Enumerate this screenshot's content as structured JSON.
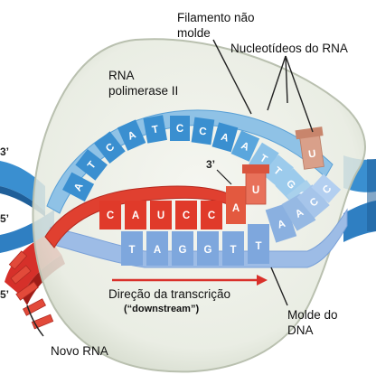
{
  "labels": {
    "non_template_strand": [
      "Filamento não",
      "molde"
    ],
    "rna_nucleotides": "Nucleotídeos do RNA",
    "rna_polymerase": [
      "RNA",
      "polimerase II"
    ],
    "transcription_direction": "Direção da transcrição",
    "downstream": "(“downstream”)",
    "template_strand": [
      "Molde do",
      "DNA"
    ],
    "new_rna": "Novo RNA"
  },
  "ends": {
    "five_prime": "5’",
    "three_prime": "3’"
  },
  "strands": {
    "non_template_bases": [
      "A",
      "T",
      "C",
      "A",
      "T",
      "C",
      "C",
      "A",
      "A",
      "T",
      "T",
      "G",
      "G"
    ],
    "rna_bases": [
      "C",
      "A",
      "U",
      "C",
      "C",
      "A"
    ],
    "incoming_rna_nucleotides": [
      "A",
      "U",
      "U"
    ],
    "template_bases": [
      "T",
      "A",
      "G",
      "G",
      "T",
      "T",
      "A",
      "A",
      "C",
      "C"
    ]
  },
  "colors": {
    "dna_blue": "#3a8fd0",
    "dna_light": "#a9d1ec",
    "template_blue": "#8eb3e0",
    "rna_red": "#de3a2a",
    "rna_nucleotide": "#d98a70",
    "polymerase_fill": "#e9ece4",
    "arrow_red": "#d9302a"
  }
}
